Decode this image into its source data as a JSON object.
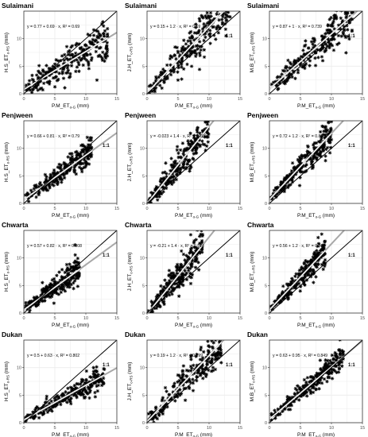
{
  "chart_data": [
    {
      "type": "scatter",
      "title": "Sulaimani",
      "ylabel": "H.S_ET",
      "ylabel_sub": "o-RS",
      "ylabel_unit": " (mm)",
      "xlabel": "P.M_ET",
      "xlabel_sub": "o-G",
      "xlabel_unit": " (mm)",
      "equation": "y = 0.77 + 0.69 · x,  R² = 0.69",
      "intercept": 0.77,
      "slope": 0.69,
      "r2": 0.69,
      "xlim": [
        0,
        15
      ],
      "ylim": [
        0,
        15
      ],
      "xticks": [
        0,
        5,
        10,
        15
      ],
      "yticks": [
        0,
        5,
        10
      ],
      "one_to_one": "1:1",
      "spread": 1.5,
      "xmax": 13.5
    },
    {
      "type": "scatter",
      "title": "Sulaimani",
      "ylabel": "J.H_ET",
      "ylabel_sub": "o-RS",
      "ylabel_unit": " (mm)",
      "xlabel": "P.M_ET",
      "xlabel_sub": "o-G",
      "xlabel_unit": " (mm)",
      "equation": "y = 0.15 + 1.2 · x,  R² = 0.69",
      "intercept": 0.15,
      "slope": 1.2,
      "r2": 0.69,
      "xlim": [
        0,
        15
      ],
      "ylim": [
        0,
        15
      ],
      "xticks": [
        0,
        5,
        10,
        15
      ],
      "yticks": [
        0,
        5,
        10
      ],
      "one_to_one": "1:1",
      "spread": 2.0,
      "xmax": 13.5
    },
    {
      "type": "scatter",
      "title": "Sulaimani",
      "ylabel": "M.B_ET",
      "ylabel_sub": "o-RS",
      "ylabel_unit": " (mm)",
      "xlabel": "P.M_ET",
      "xlabel_sub": "o-G",
      "xlabel_unit": " (mm)",
      "equation": "y = 0.87 + 1 · x,  R² = 0.739",
      "intercept": 0.87,
      "slope": 1.0,
      "r2": 0.739,
      "xlim": [
        0,
        15
      ],
      "ylim": [
        0,
        15
      ],
      "xticks": [
        0,
        5,
        10,
        15
      ],
      "yticks": [
        0,
        5,
        10
      ],
      "one_to_one": "1:1",
      "spread": 1.6,
      "xmax": 13.5
    },
    {
      "type": "scatter",
      "title": "Penjween",
      "ylabel": "H.S_ET",
      "ylabel_sub": "o-RS",
      "ylabel_unit": " (mm)",
      "xlabel": "P.M_ET",
      "xlabel_sub": "o-G",
      "xlabel_unit": " (mm)",
      "equation": "y = 0.66 + 0.81 · x,  R² = 0.79",
      "intercept": 0.66,
      "slope": 0.81,
      "r2": 0.79,
      "xlim": [
        0,
        15
      ],
      "ylim": [
        0,
        15
      ],
      "xticks": [
        0,
        5,
        10,
        15
      ],
      "yticks": [
        0,
        5,
        10
      ],
      "one_to_one": "1:1",
      "spread": 1.0,
      "xmax": 11
    },
    {
      "type": "scatter",
      "title": "Penjween",
      "ylabel": "J.H_ET",
      "ylabel_sub": "o-RS",
      "ylabel_unit": " (mm)",
      "xlabel": "P.M_ET",
      "xlabel_sub": "o-G",
      "xlabel_unit": " (mm)",
      "equation": "y = -0.023 + 1.4 · x,  R² = 0.786",
      "intercept": -0.023,
      "slope": 1.4,
      "r2": 0.786,
      "xlim": [
        0,
        15
      ],
      "ylim": [
        0,
        15
      ],
      "xticks": [
        0,
        5,
        10,
        15
      ],
      "yticks": [
        0,
        5,
        10
      ],
      "one_to_one": "1:1",
      "spread": 1.5,
      "xmax": 10
    },
    {
      "type": "scatter",
      "title": "Penjween",
      "ylabel": "M.B_ET",
      "ylabel_sub": "o-RS",
      "ylabel_unit": " (mm)",
      "xlabel": "P.M_ET",
      "xlabel_sub": "o-G",
      "xlabel_unit": " (mm)",
      "equation": "y = 0.72 + 1.2 · x,  R² = 0.836",
      "intercept": 0.72,
      "slope": 1.2,
      "r2": 0.836,
      "xlim": [
        0,
        15
      ],
      "ylim": [
        0,
        15
      ],
      "xticks": [
        0,
        5,
        10,
        15
      ],
      "yticks": [
        0,
        5,
        10
      ],
      "one_to_one": "1:1",
      "spread": 1.1,
      "xmax": 10
    },
    {
      "type": "scatter",
      "title": "Chwarta",
      "ylabel": "H.S_ET",
      "ylabel_sub": "o-RS",
      "ylabel_unit": " (mm)",
      "xlabel": "P.M_ET",
      "xlabel_sub": "o-G",
      "xlabel_unit": " (mm)",
      "equation": "y = 0.57 + 0.82 · x,  R² = 0.808",
      "intercept": 0.57,
      "slope": 0.82,
      "r2": 0.808,
      "xlim": [
        0,
        15
      ],
      "ylim": [
        0,
        15
      ],
      "xticks": [
        0,
        5,
        10,
        15
      ],
      "yticks": [
        0,
        5,
        10
      ],
      "one_to_one": "1:1",
      "spread": 1.0,
      "xmax": 9
    },
    {
      "type": "scatter",
      "title": "Chwarta",
      "ylabel": "J.H_ET",
      "ylabel_sub": "o-RS",
      "ylabel_unit": " (mm)",
      "xlabel": "P.M_ET",
      "xlabel_sub": "o-G",
      "xlabel_unit": " (mm)",
      "equation": "y = -0.21 + 1.4 · x,  R² = 0.814",
      "intercept": -0.21,
      "slope": 1.4,
      "r2": 0.814,
      "xlim": [
        0,
        15
      ],
      "ylim": [
        0,
        15
      ],
      "xticks": [
        0,
        5,
        10,
        15
      ],
      "yticks": [
        0,
        5,
        10
      ],
      "one_to_one": "1:1",
      "spread": 1.4,
      "xmax": 9
    },
    {
      "type": "scatter",
      "title": "Chwarta",
      "ylabel": "M.B_ET",
      "ylabel_sub": "o-RS",
      "ylabel_unit": " (mm)",
      "xlabel": "P.M_ET",
      "xlabel_sub": "o-G",
      "xlabel_unit": " (mm)",
      "equation": "y = 0.56 + 1.2 · x,  R² = 0.864",
      "intercept": 0.56,
      "slope": 1.2,
      "r2": 0.864,
      "xlim": [
        0,
        15
      ],
      "ylim": [
        0,
        15
      ],
      "xticks": [
        0,
        5,
        10,
        15
      ],
      "yticks": [
        0,
        5,
        10
      ],
      "one_to_one": "1:1",
      "spread": 1.0,
      "xmax": 9
    },
    {
      "type": "scatter",
      "title": "Dukan",
      "ylabel": "H.S_ET",
      "ylabel_sub": "o-RS",
      "ylabel_unit": " (mm)",
      "xlabel": "P.M_ET",
      "xlabel_sub": "o-G",
      "xlabel_unit": " (mm)",
      "equation": "y = 0.5 + 0.63 · x,  R² = 0.802",
      "intercept": 0.5,
      "slope": 0.63,
      "r2": 0.802,
      "xlim": [
        0,
        15
      ],
      "ylim": [
        0,
        15
      ],
      "xticks": [
        0,
        5,
        10,
        15
      ],
      "yticks": [
        0,
        5,
        10
      ],
      "one_to_one": "1:1",
      "spread": 0.9,
      "xmax": 13
    },
    {
      "type": "scatter",
      "title": "Dukan",
      "ylabel": "J.H_ET",
      "ylabel_sub": "o-RS",
      "ylabel_unit": " (mm)",
      "xlabel": "P.M_ET",
      "xlabel_sub": "o-G",
      "xlabel_unit": " (mm)",
      "equation": "y = 0.19 + 1.2 · x,  R² = 0.799",
      "intercept": 0.19,
      "slope": 1.2,
      "r2": 0.799,
      "xlim": [
        0,
        15
      ],
      "ylim": [
        0,
        15
      ],
      "xticks": [
        0,
        5,
        10,
        15
      ],
      "yticks": [
        0,
        5,
        10
      ],
      "one_to_one": "1:1",
      "spread": 1.6,
      "xmax": 12
    },
    {
      "type": "scatter",
      "title": "Dukan",
      "ylabel": "M.B_ET",
      "ylabel_sub": "o-RS",
      "ylabel_unit": " (mm)",
      "xlabel": "P.M_ET",
      "xlabel_sub": "o-G",
      "xlabel_unit": " (mm)",
      "equation": "y = 0.63 + 0.95 · x,  R² = 0.849",
      "intercept": 0.63,
      "slope": 0.95,
      "r2": 0.849,
      "xlim": [
        0,
        15
      ],
      "ylim": [
        0,
        15
      ],
      "xticks": [
        0,
        5,
        10,
        15
      ],
      "yticks": [
        0,
        5,
        10
      ],
      "one_to_one": "1:1",
      "spread": 1.0,
      "xmax": 12
    }
  ],
  "colors": {
    "points": "#000000",
    "fit_line": "#ffffff",
    "overall_line": "#a8a8a8",
    "one_to_one_line": "#000000",
    "grid": "#ebebeb",
    "border": "#333333"
  }
}
